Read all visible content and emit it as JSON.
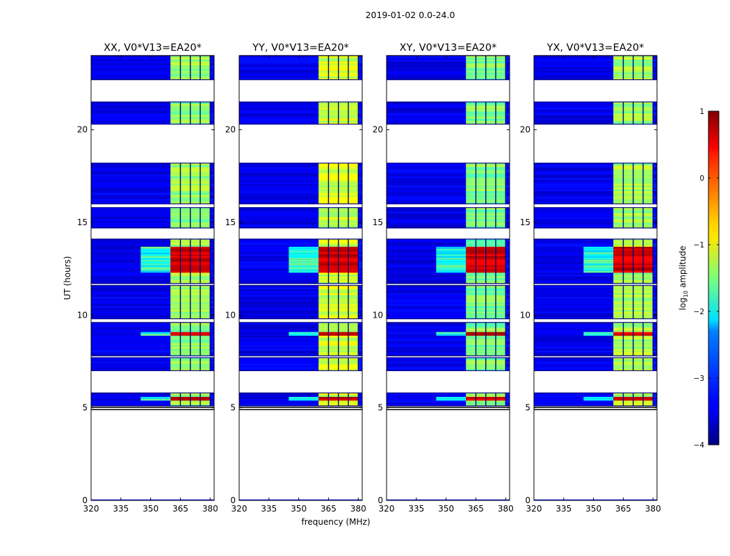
{
  "figure_title": "2019-01-02 0.0-24.0",
  "xlabel": "frequency (MHz)",
  "ylabel": "UT (hours)",
  "colorbar": {
    "label": "log",
    "label_sub": "10",
    "label_rest": " amplitude",
    "range": [
      -4,
      1
    ],
    "ticks": [
      "1",
      "0",
      "−1",
      "−2",
      "−3",
      "−4"
    ],
    "tick_values": [
      1,
      0,
      -1,
      -2,
      -3,
      -4
    ],
    "colormap": "jet"
  },
  "chart_data": {
    "type": "heatmap",
    "title": "2019-01-02 0.0-24.0",
    "xlabel": "frequency (MHz)",
    "ylabel": "UT (hours)",
    "xlim": [
      320,
      382
    ],
    "ylim": [
      0,
      24
    ],
    "xticks": [
      320,
      335,
      350,
      365,
      380
    ],
    "xtick_labels": [
      "320",
      "335",
      "350",
      "365",
      "380"
    ],
    "yticks": [
      0,
      5,
      10,
      15,
      20
    ],
    "ytick_labels": [
      "0",
      "5",
      "10",
      "15",
      "20"
    ],
    "value_label": "log10 amplitude",
    "value_range": [
      -4,
      1
    ],
    "panels": [
      {
        "title": "XX, V0*V13=EA20*",
        "strong_band": [
          360,
          380
        ],
        "band_level": -1.2
      },
      {
        "title": "YY, V0*V13=EA20*",
        "strong_band": [
          360,
          380
        ],
        "band_level": -0.9
      },
      {
        "title": "XY, V0*V13=EA20*",
        "strong_band": [
          360,
          380
        ],
        "band_level": -1.3
      },
      {
        "title": "YX, V0*V13=EA20*",
        "strong_band": [
          360,
          380
        ],
        "band_level": -1.1
      }
    ],
    "data_segments_hours": [
      [
        5.1,
        5.8
      ],
      [
        7.0,
        7.7
      ],
      [
        7.8,
        9.6
      ],
      [
        9.8,
        11.6
      ],
      [
        11.7,
        14.1
      ],
      [
        14.7,
        15.8
      ],
      [
        16.0,
        18.2
      ],
      [
        20.3,
        21.5
      ],
      [
        22.7,
        24.0
      ]
    ],
    "band_channel_gaps_mhz": [
      365,
      370,
      375,
      380
    ],
    "high_amplitude_hours": [
      [
        5.35,
        5.55
      ],
      [
        8.85,
        9.0
      ],
      [
        12.2,
        13.6
      ]
    ]
  }
}
